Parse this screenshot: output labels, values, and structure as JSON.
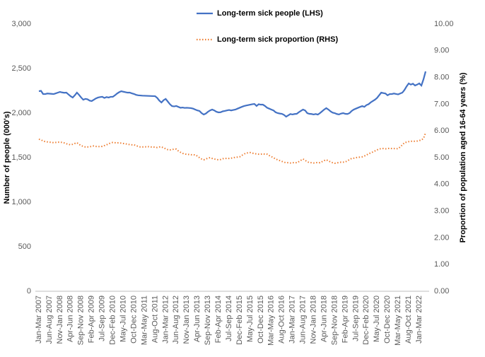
{
  "chart_data": {
    "type": "line",
    "y_label": "Number of people (000's)",
    "y2_label": "Proportion of population aged 16-64 years (%)",
    "categories": [
      "Jan-Mar 2007",
      null,
      null,
      null,
      null,
      "Jun-Aug 2007",
      null,
      null,
      null,
      null,
      "Nov-Jan 2008",
      null,
      null,
      null,
      null,
      "Apr-Jun 2008",
      null,
      null,
      null,
      null,
      "Sep-Nov 2008",
      null,
      null,
      null,
      null,
      "Feb-Apr 2009",
      null,
      null,
      null,
      null,
      "Jul-Sep 2009",
      null,
      null,
      null,
      null,
      "Dec-Feb 2010",
      null,
      null,
      null,
      null,
      "May-Jul 2010",
      null,
      null,
      null,
      null,
      "Oct-Dec 2010",
      null,
      null,
      null,
      null,
      "Mar-May 2011",
      null,
      null,
      null,
      null,
      "Aug-Oct 2011",
      null,
      null,
      null,
      null,
      "Jan-Mar 2012",
      null,
      null,
      null,
      null,
      "Jun-Aug 2012",
      null,
      null,
      null,
      null,
      "Nov-Jan 2013",
      null,
      null,
      null,
      null,
      "Apr-Jun 2013",
      null,
      null,
      null,
      null,
      "Sep-Nov 2013",
      null,
      null,
      null,
      null,
      "Feb-Apr 2014",
      null,
      null,
      null,
      null,
      "Jul-Sep 2014",
      null,
      null,
      null,
      null,
      "Dec-Feb 2015",
      null,
      null,
      null,
      null,
      "May-Jul 2015",
      null,
      null,
      null,
      null,
      "Oct-Dec 2015",
      null,
      null,
      null,
      null,
      "Mar-May 2016",
      null,
      null,
      null,
      null,
      "Aug-Oct 2016",
      null,
      null,
      null,
      null,
      "Jan-Mar 2017",
      null,
      null,
      null,
      null,
      "Jun-Aug 2017",
      null,
      null,
      null,
      null,
      "Nov-Jan 2018",
      null,
      null,
      null,
      null,
      "Apr-Jun 2018",
      null,
      null,
      null,
      null,
      "Sep-Nov 2018",
      null,
      null,
      null,
      null,
      "Feb-Apr 2019",
      null,
      null,
      null,
      null,
      "Jul-Sep 2019",
      null,
      null,
      null,
      null,
      "Dec-Feb 2020",
      null,
      null,
      null,
      null,
      "May-Jul 2020",
      null,
      null,
      null,
      null,
      "Oct-Dec 2020",
      null,
      null,
      null,
      null,
      "Mar-May 2021",
      null,
      null,
      null,
      null,
      "Aug-Oct 2021",
      null,
      null,
      null,
      null,
      "Jan-Mar 2022",
      null,
      null,
      null
    ],
    "series": [
      {
        "name": "Long-term sick people (LHS)",
        "color": "#4472c4",
        "dash": "solid",
        "values": [
          2246,
          2250,
          2214,
          2214,
          2220,
          2218,
          2216,
          2214,
          2222,
          2230,
          2238,
          2232,
          2228,
          2230,
          2210,
          2190,
          2175,
          2200,
          2230,
          2205,
          2175,
          2150,
          2160,
          2155,
          2140,
          2135,
          2150,
          2165,
          2175,
          2180,
          2183,
          2170,
          2180,
          2175,
          2183,
          2183,
          2200,
          2220,
          2235,
          2246,
          2240,
          2235,
          2230,
          2230,
          2222,
          2215,
          2205,
          2200,
          2198,
          2196,
          2195,
          2194,
          2193,
          2192,
          2191,
          2190,
          2170,
          2140,
          2119,
          2145,
          2159,
          2130,
          2100,
          2079,
          2075,
          2080,
          2070,
          2060,
          2063,
          2058,
          2060,
          2058,
          2056,
          2050,
          2040,
          2030,
          2024,
          2000,
          1984,
          1995,
          2015,
          2030,
          2040,
          2030,
          2015,
          2008,
          2010,
          2020,
          2024,
          2030,
          2035,
          2030,
          2035,
          2040,
          2050,
          2060,
          2070,
          2079,
          2085,
          2090,
          2095,
          2100,
          2103,
          2080,
          2100,
          2095,
          2095,
          2080,
          2060,
          2050,
          2040,
          2030,
          2010,
          2000,
          1995,
          1992,
          1980,
          1960,
          1975,
          1990,
          1985,
          1990,
          1992,
          2010,
          2025,
          2040,
          2030,
          2000,
          1992,
          1990,
          1985,
          1990,
          1984,
          2000,
          2020,
          2040,
          2056,
          2040,
          2020,
          2005,
          2000,
          1990,
          1985,
          1995,
          2000,
          1992,
          1990,
          2000,
          2024,
          2040,
          2050,
          2060,
          2070,
          2079,
          2070,
          2090,
          2100,
          2120,
          2135,
          2150,
          2170,
          2200,
          2230,
          2225,
          2220,
          2200,
          2214,
          2214,
          2220,
          2215,
          2210,
          2220,
          2230,
          2260,
          2300,
          2333,
          2320,
          2330,
          2310,
          2320,
          2333,
          2310,
          2380,
          2468
        ]
      },
      {
        "name": "Long-term sick proportion (RHS)",
        "color": "#ed7d31",
        "dash": "dotted",
        "axis": "y2",
        "values": [
          5.69,
          5.67,
          5.62,
          5.6,
          5.59,
          5.58,
          5.57,
          5.56,
          5.57,
          5.58,
          5.58,
          5.57,
          5.55,
          5.52,
          5.5,
          5.48,
          5.5,
          5.53,
          5.56,
          5.5,
          5.45,
          5.42,
          5.4,
          5.4,
          5.41,
          5.42,
          5.44,
          5.42,
          5.41,
          5.42,
          5.42,
          5.45,
          5.48,
          5.52,
          5.55,
          5.57,
          5.56,
          5.55,
          5.56,
          5.54,
          5.53,
          5.52,
          5.5,
          5.49,
          5.48,
          5.48,
          5.45,
          5.42,
          5.4,
          5.4,
          5.41,
          5.4,
          5.41,
          5.4,
          5.4,
          5.39,
          5.38,
          5.4,
          5.4,
          5.37,
          5.33,
          5.3,
          5.29,
          5.3,
          5.32,
          5.32,
          5.25,
          5.2,
          5.16,
          5.14,
          5.12,
          5.12,
          5.11,
          5.11,
          5.1,
          5.06,
          5.0,
          4.95,
          4.92,
          4.95,
          4.98,
          5.0,
          4.97,
          4.95,
          4.93,
          4.92,
          4.93,
          4.96,
          4.97,
          4.97,
          4.97,
          4.98,
          5.0,
          5.01,
          5.02,
          5.03,
          5.08,
          5.13,
          5.17,
          5.18,
          5.19,
          5.17,
          5.15,
          5.14,
          5.13,
          5.13,
          5.14,
          5.13,
          5.13,
          5.08,
          5.04,
          5.0,
          4.95,
          4.92,
          4.89,
          4.86,
          4.83,
          4.81,
          4.81,
          4.8,
          4.81,
          4.81,
          4.81,
          4.85,
          4.9,
          4.95,
          4.9,
          4.85,
          4.81,
          4.81,
          4.8,
          4.81,
          4.82,
          4.81,
          4.85,
          4.89,
          4.92,
          4.88,
          4.84,
          4.81,
          4.79,
          4.8,
          4.82,
          4.83,
          4.83,
          4.84,
          4.88,
          4.93,
          4.97,
          4.98,
          5.0,
          5.01,
          5.02,
          5.03,
          5.06,
          5.1,
          5.14,
          5.18,
          5.21,
          5.25,
          5.29,
          5.32,
          5.34,
          5.34,
          5.33,
          5.34,
          5.35,
          5.34,
          5.34,
          5.33,
          5.34,
          5.4,
          5.48,
          5.56,
          5.58,
          5.6,
          5.61,
          5.62,
          5.61,
          5.62,
          5.64,
          5.66,
          5.72,
          5.93
        ]
      }
    ],
    "ylim": [
      0,
      3000
    ],
    "yticks": [
      0,
      500,
      {
        "value": 1000,
        "label": "1,000"
      },
      {
        "value": 1500,
        "label": "1,500"
      },
      {
        "value": 2000,
        "label": "2,000"
      },
      {
        "value": 2500,
        "label": "2,500"
      },
      {
        "value": 3000,
        "label": "3,000"
      }
    ],
    "y2lim": [
      0,
      10
    ],
    "y2ticks": [
      {
        "value": 0,
        "label": "0.00"
      },
      {
        "value": 1,
        "label": "1.00"
      },
      {
        "value": 2,
        "label": "2.00"
      },
      {
        "value": 3,
        "label": "3.00"
      },
      {
        "value": 4,
        "label": "4.00"
      },
      {
        "value": 5,
        "label": "5.00"
      },
      {
        "value": 6,
        "label": "6.00"
      },
      {
        "value": 7,
        "label": "7.00"
      },
      {
        "value": 8,
        "label": "8.00"
      },
      {
        "value": 9,
        "label": "9.00"
      },
      {
        "value": 10,
        "label": "10.00"
      }
    ],
    "grid": false
  }
}
